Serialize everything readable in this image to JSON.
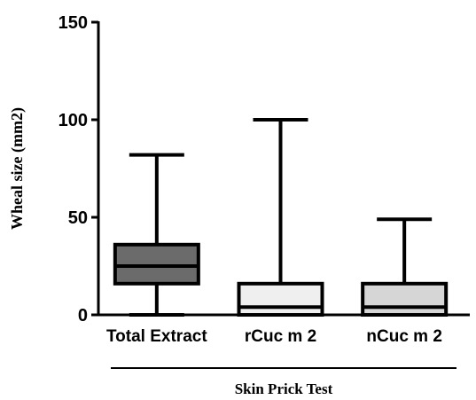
{
  "chart_data": {
    "type": "box",
    "ylabel": "Wheal size (mm2)",
    "group_label": "Skin Prick Test",
    "ylim": [
      0,
      150
    ],
    "yticks": [
      0,
      50,
      100,
      150
    ],
    "categories": [
      "Total Extract",
      "rCuc m 2",
      "nCuc m 2"
    ],
    "boxes": [
      {
        "category": "Total Extract",
        "min": 0,
        "q1": 16,
        "median": 25,
        "q3": 36,
        "max": 82,
        "fill": "#6b6b6b"
      },
      {
        "category": "rCuc m 2",
        "min": 0,
        "q1": 0,
        "median": 4,
        "q3": 16,
        "max": 100,
        "fill": "#efefef"
      },
      {
        "category": "nCuc m 2",
        "min": 0,
        "q1": 0,
        "median": 4,
        "q3": 16,
        "max": 49,
        "fill": "#d6d6d6"
      }
    ]
  }
}
